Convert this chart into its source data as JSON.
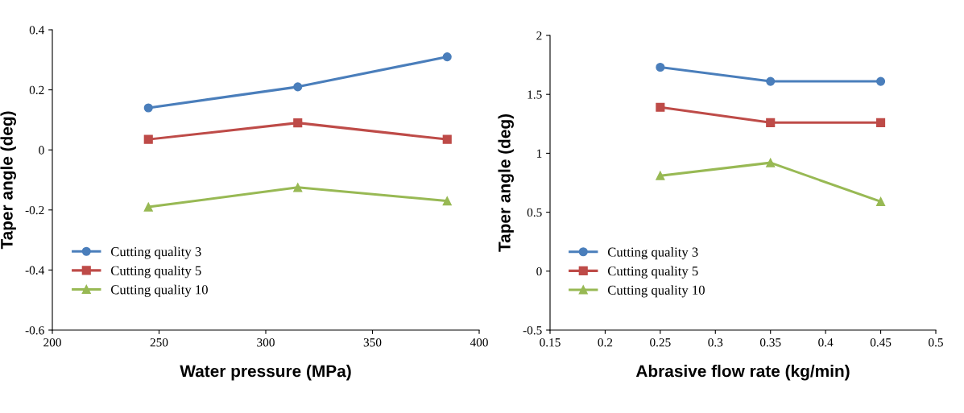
{
  "chart_data": [
    {
      "type": "line",
      "xlabel": "Water pressure (MPa)",
      "ylabel": "Taper angle (deg)",
      "x": [
        245,
        315,
        385
      ],
      "xlim": [
        200,
        400
      ],
      "xticks": [
        200,
        250,
        300,
        350,
        400
      ],
      "ylim": [
        -0.6,
        0.4
      ],
      "yticks": [
        -0.6,
        -0.4,
        -0.2,
        0,
        0.2,
        0.4
      ],
      "legend": "bottom left",
      "grid": false,
      "series": [
        {
          "name": "Cutting quality 3",
          "color": "#4a7ebb",
          "marker": "circle",
          "values": [
            0.14,
            0.21,
            0.31
          ]
        },
        {
          "name": "Cutting quality 5",
          "color": "#be4b48",
          "marker": "square",
          "values": [
            0.035,
            0.09,
            0.035
          ]
        },
        {
          "name": "Cutting quality 10",
          "color": "#98b954",
          "marker": "triangle",
          "values": [
            -0.19,
            -0.125,
            -0.17
          ]
        }
      ]
    },
    {
      "type": "line",
      "xlabel": "Abrasive flow rate (kg/min)",
      "ylabel": "Taper angle (deg)",
      "x": [
        0.25,
        0.35,
        0.45
      ],
      "xlim": [
        0.15,
        0.5
      ],
      "xticks": [
        0.15,
        0.2,
        0.25,
        0.3,
        0.35,
        0.4,
        0.45,
        0.5
      ],
      "ylim": [
        -0.5,
        2
      ],
      "yticks": [
        -0.5,
        0,
        0.5,
        1,
        1.5,
        2
      ],
      "legend": "bottom left",
      "grid": false,
      "series": [
        {
          "name": "Cutting quality 3",
          "color": "#4a7ebb",
          "marker": "circle",
          "values": [
            1.73,
            1.61,
            1.61
          ]
        },
        {
          "name": "Cutting quality 5",
          "color": "#be4b48",
          "marker": "square",
          "values": [
            1.39,
            1.26,
            1.26
          ]
        },
        {
          "name": "Cutting quality 10",
          "color": "#98b954",
          "marker": "triangle",
          "values": [
            0.81,
            0.92,
            0.59
          ]
        }
      ]
    }
  ]
}
